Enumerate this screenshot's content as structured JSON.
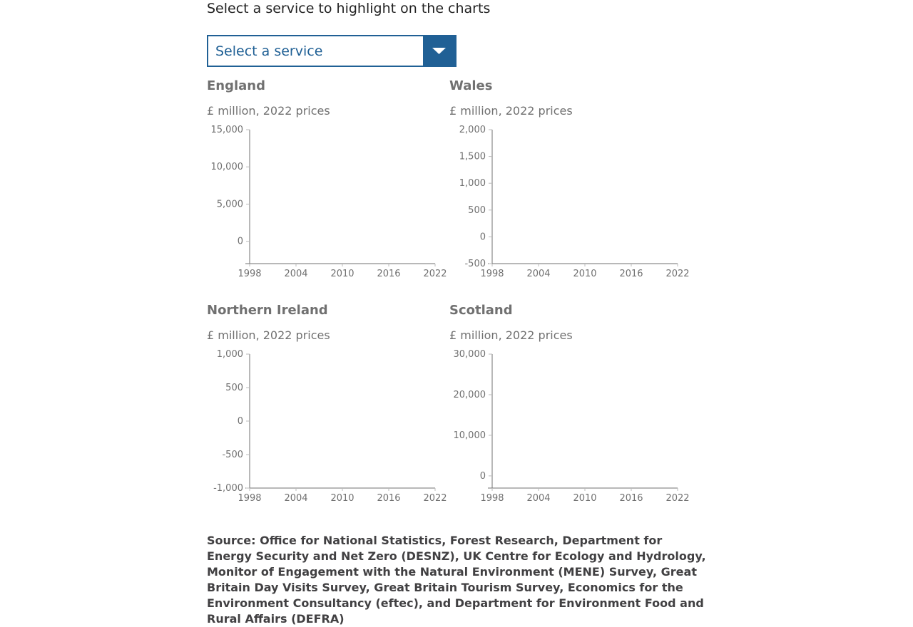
{
  "prompt": "Select a service to highlight on the charts",
  "select": {
    "value": "Select a service"
  },
  "colors": {
    "accent": "#206095",
    "axis": "#707070",
    "text": "#414042"
  },
  "icons": {
    "dropdown": "chevron-down-icon"
  },
  "chart_data": [
    {
      "type": "line",
      "title": "England",
      "subtitle": "£ million, 2022 prices",
      "x_ticks": [
        1998,
        2004,
        2010,
        2016,
        2022
      ],
      "xlim": [
        1998,
        2022
      ],
      "y_ticks": [
        0,
        5000,
        10000,
        15000
      ],
      "y_tick_labels": [
        "0",
        "5,000",
        "10,000",
        "15,000"
      ],
      "ylim": [
        -3000,
        15000
      ],
      "series": []
    },
    {
      "type": "line",
      "title": "Wales",
      "subtitle": "£ million, 2022 prices",
      "x_ticks": [
        1998,
        2004,
        2010,
        2016,
        2022
      ],
      "xlim": [
        1998,
        2022
      ],
      "y_ticks": [
        -500,
        0,
        500,
        1000,
        1500,
        2000
      ],
      "y_tick_labels": [
        "-500",
        "0",
        "500",
        "1,000",
        "1,500",
        "2,000"
      ],
      "ylim": [
        -500,
        2000
      ],
      "series": []
    },
    {
      "type": "line",
      "title": "Northern Ireland",
      "subtitle": "£ million, 2022 prices",
      "x_ticks": [
        1998,
        2004,
        2010,
        2016,
        2022
      ],
      "xlim": [
        1998,
        2022
      ],
      "y_ticks": [
        -1000,
        -500,
        0,
        500,
        1000
      ],
      "y_tick_labels": [
        "-1,000",
        "-500",
        "0",
        "500",
        "1,000"
      ],
      "ylim": [
        -1000,
        1000
      ],
      "series": []
    },
    {
      "type": "line",
      "title": "Scotland",
      "subtitle": "£ million, 2022 prices",
      "x_ticks": [
        1998,
        2004,
        2010,
        2016,
        2022
      ],
      "xlim": [
        1998,
        2022
      ],
      "y_ticks": [
        0,
        10000,
        20000,
        30000
      ],
      "y_tick_labels": [
        "0",
        "10,000",
        "20,000",
        "30,000"
      ],
      "ylim": [
        -3000,
        30000
      ],
      "series": []
    }
  ],
  "source": "Source: Office for National Statistics, Forest Research, Department for Energy Security and Net Zero (DESNZ), UK Centre for Ecology and Hydrology, Monitor of Engagement with the Natural Environment (MENE) Survey, Great Britain Day Visits Survey, Great Britain Tourism Survey, Economics for the Environment Consultancy (eftec), and Department for Environment Food and Rural Affairs (DEFRA)"
}
